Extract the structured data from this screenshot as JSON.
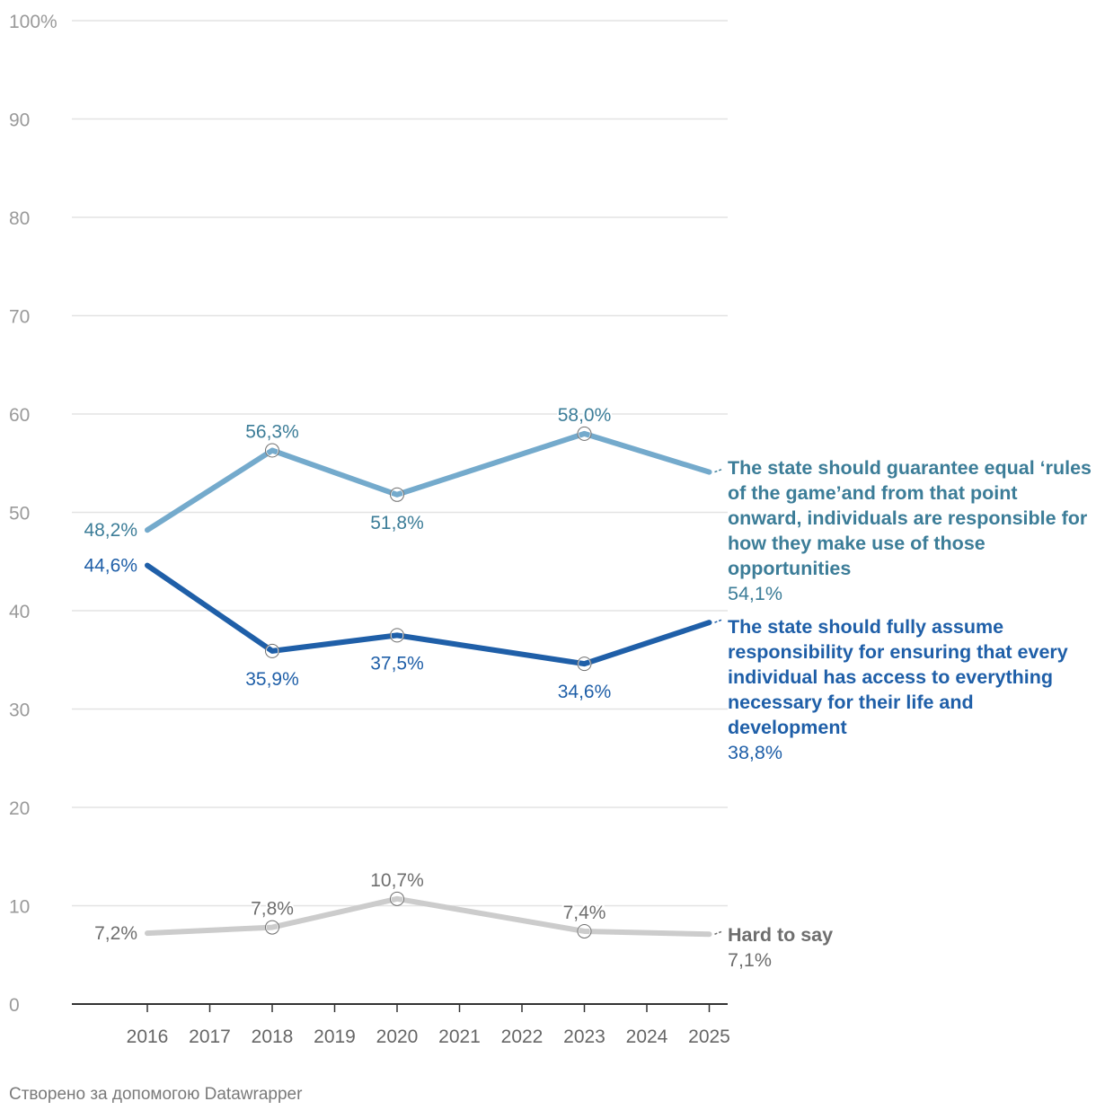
{
  "chart_data": {
    "type": "line",
    "title": "",
    "xlabel": "",
    "ylabel": "",
    "ylim": [
      0,
      100
    ],
    "y_ticks": [
      0,
      10,
      20,
      30,
      40,
      50,
      60,
      70,
      80,
      90,
      100
    ],
    "y_tick_labels": [
      "0",
      "10",
      "20",
      "30",
      "40",
      "50",
      "60",
      "70",
      "80",
      "90",
      "100%"
    ],
    "x_ticks": [
      "2016",
      "2017",
      "2018",
      "2019",
      "2020",
      "2021",
      "2022",
      "2023",
      "2024",
      "2025"
    ],
    "grid": true,
    "series": [
      {
        "id": "equal-rules",
        "name": "The state should guarantee equal ‘rules of the game’and from that point onward, individuals are responsible for how they make use of those opportunities",
        "color": "#74aacc",
        "label_color": "#3c7d98",
        "points": [
          {
            "x": 2016,
            "y": 48.2,
            "label": "48,2%",
            "pos": "left"
          },
          {
            "x": 2018,
            "y": 56.3,
            "label": "56,3%",
            "pos": "above"
          },
          {
            "x": 2020,
            "y": 51.8,
            "label": "51,8%",
            "pos": "below"
          },
          {
            "x": 2023,
            "y": 58.0,
            "label": "58,0%",
            "pos": "above"
          },
          {
            "x": 2025,
            "y": 54.1,
            "label": "54,1%",
            "pos": "end"
          }
        ],
        "end_value": "54,1%"
      },
      {
        "id": "full-responsibility",
        "name": "The state should fully assume responsibility for ensuring that every individual has access to everything necessary for their life and development",
        "color": "#1f5fa8",
        "label_color": "#1f5fa8",
        "points": [
          {
            "x": 2016,
            "y": 44.6,
            "label": "44,6%",
            "pos": "left"
          },
          {
            "x": 2018,
            "y": 35.9,
            "label": "35,9%",
            "pos": "below"
          },
          {
            "x": 2020,
            "y": 37.5,
            "label": "37,5%",
            "pos": "below"
          },
          {
            "x": 2023,
            "y": 34.6,
            "label": "34,6%",
            "pos": "below"
          },
          {
            "x": 2025,
            "y": 38.8,
            "label": "38,8%",
            "pos": "end"
          }
        ],
        "end_value": "38,8%"
      },
      {
        "id": "hard-to-say",
        "name": "Hard to say",
        "color": "#cccccc",
        "label_color": "#6e6e6e",
        "points": [
          {
            "x": 2016,
            "y": 7.2,
            "label": "7,2%",
            "pos": "left"
          },
          {
            "x": 2018,
            "y": 7.8,
            "label": "7,8%",
            "pos": "above"
          },
          {
            "x": 2020,
            "y": 10.7,
            "label": "10,7%",
            "pos": "above"
          },
          {
            "x": 2023,
            "y": 7.4,
            "label": "7,4%",
            "pos": "above"
          },
          {
            "x": 2025,
            "y": 7.1,
            "label": "7,1%",
            "pos": "end"
          }
        ],
        "end_value": "7,1%"
      }
    ]
  },
  "legend": {
    "equal_rules": {
      "name": "The state should guarantee equal ‘rules of the game’and from that point onward, individuals are responsible for how they make use of those opportunities",
      "value": "54,1%"
    },
    "full_responsibility": {
      "name": "The state should fully assume responsibility for ensuring that every individual has access to everything necessary for their life and development",
      "value": "38,8%"
    },
    "hard_to_say": {
      "name": "Hard to say",
      "value": "7,1%"
    }
  },
  "footer": "Створено за допомогою Datawrapper"
}
